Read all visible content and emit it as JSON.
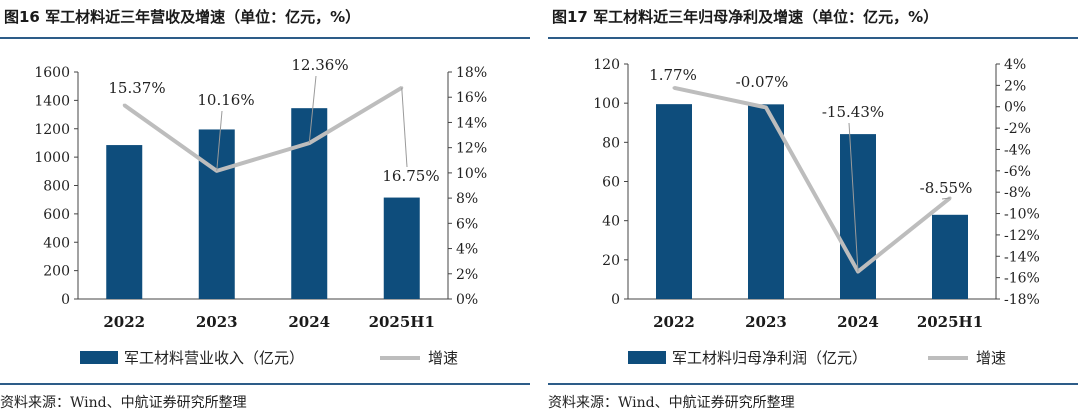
{
  "chart_data": [
    {
      "type": "bar",
      "title": "图16 军工材料近三年营收及增速（单位：亿元，%）",
      "categories": [
        "2022",
        "2023",
        "2024",
        "2025H1"
      ],
      "series": [
        {
          "name": "军工材料营业收入（亿元）",
          "type": "bar",
          "axis": "left",
          "values": [
            1085,
            1195,
            1345,
            715
          ]
        },
        {
          "name": "增速",
          "type": "line",
          "axis": "right",
          "values": [
            15.37,
            10.16,
            12.36,
            16.75
          ]
        }
      ],
      "left_axis": {
        "min": 0,
        "max": 1600,
        "step": 200,
        "ticks": [
          "0",
          "200",
          "400",
          "600",
          "800",
          "1000",
          "1200",
          "1400",
          "1600"
        ]
      },
      "right_axis": {
        "min": 0,
        "max": 18,
        "step": 2,
        "ticks": [
          "0%",
          "2%",
          "4%",
          "6%",
          "8%",
          "10%",
          "12%",
          "14%",
          "16%",
          "18%"
        ]
      },
      "data_labels": [
        "15.37%",
        "10.16%",
        "12.36%",
        "16.75%"
      ],
      "legend": {
        "bar": "军工材料营业收入（亿元）",
        "line": "增速",
        "position": "bottom"
      },
      "source": "资料来源：Wind、中航证券研究所整理"
    },
    {
      "type": "bar",
      "title": "图17 军工材料近三年归母净利及增速（单位：亿元，%）",
      "categories": [
        "2022",
        "2023",
        "2024",
        "2025H1"
      ],
      "series": [
        {
          "name": "军工材料归母净利润（亿元）",
          "type": "bar",
          "axis": "left",
          "values": [
            99.5,
            99.4,
            84.2,
            43
          ]
        },
        {
          "name": "增速",
          "type": "line",
          "axis": "right",
          "values": [
            1.77,
            -0.07,
            -15.43,
            -8.55
          ]
        }
      ],
      "left_axis": {
        "min": 0,
        "max": 120,
        "step": 20,
        "ticks": [
          "0",
          "20",
          "40",
          "60",
          "80",
          "100",
          "120"
        ]
      },
      "right_axis": {
        "min": -18,
        "max": 4,
        "step": 2,
        "ticks": [
          "-18%",
          "-16%",
          "-14%",
          "-12%",
          "-10%",
          "-8%",
          "-6%",
          "-4%",
          "-2%",
          "0%",
          "2%",
          "4%"
        ]
      },
      "data_labels": [
        "1.77%",
        "-0.07%",
        "-15.43%",
        "-8.55%"
      ],
      "legend": {
        "bar": "军工材料归母净利润（亿元）",
        "line": "增速",
        "position": "bottom"
      },
      "source": "资料来源：Wind、中航证券研究所整理"
    }
  ],
  "colors": {
    "bar": "#0e4d7c",
    "line": "#bdbdbd",
    "rule": "#2d5c88",
    "text": "#1a1a1a"
  }
}
